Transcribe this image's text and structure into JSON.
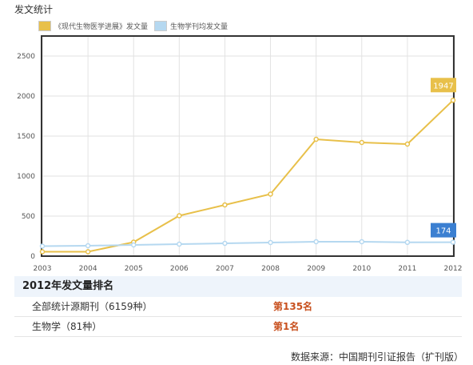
{
  "header": {
    "title": "发文统计"
  },
  "legend": [
    {
      "label": "《现代生物医学进展》发文量",
      "color": "#e8c04a"
    },
    {
      "label": "生物学刊均发文量",
      "color": "#b5d8f0"
    }
  ],
  "chart_data": {
    "type": "line",
    "x": [
      "2003",
      "2004",
      "2005",
      "2006",
      "2007",
      "2008",
      "2009",
      "2010",
      "2011",
      "2012"
    ],
    "series": [
      {
        "name": "《现代生物医学进展》发文量",
        "color": "#e8c04a",
        "values": [
          55,
          55,
          175,
          505,
          640,
          775,
          1460,
          1420,
          1400,
          1947
        ]
      },
      {
        "name": "生物学刊均发文量",
        "color": "#b5d8f0",
        "values": [
          125,
          130,
          140,
          150,
          160,
          170,
          180,
          180,
          172,
          174
        ]
      }
    ],
    "yticks": [
      "0",
      "500",
      "1000",
      "1500",
      "2000",
      "2500"
    ],
    "ylim": [
      0,
      2750
    ],
    "end_labels": [
      {
        "text": "1947",
        "bg": "#e8c04a"
      },
      {
        "text": "174",
        "bg": "#3b7fd1"
      }
    ],
    "grid": true
  },
  "ranking": {
    "title": "2012年发文量排名",
    "rows": [
      {
        "label": "全部统计源期刊（6159种）",
        "value": "第135名"
      },
      {
        "label": "生物学（81种）",
        "value": "第1名"
      }
    ]
  },
  "source": "数据来源：中国期刊引证报告（扩刊版）"
}
